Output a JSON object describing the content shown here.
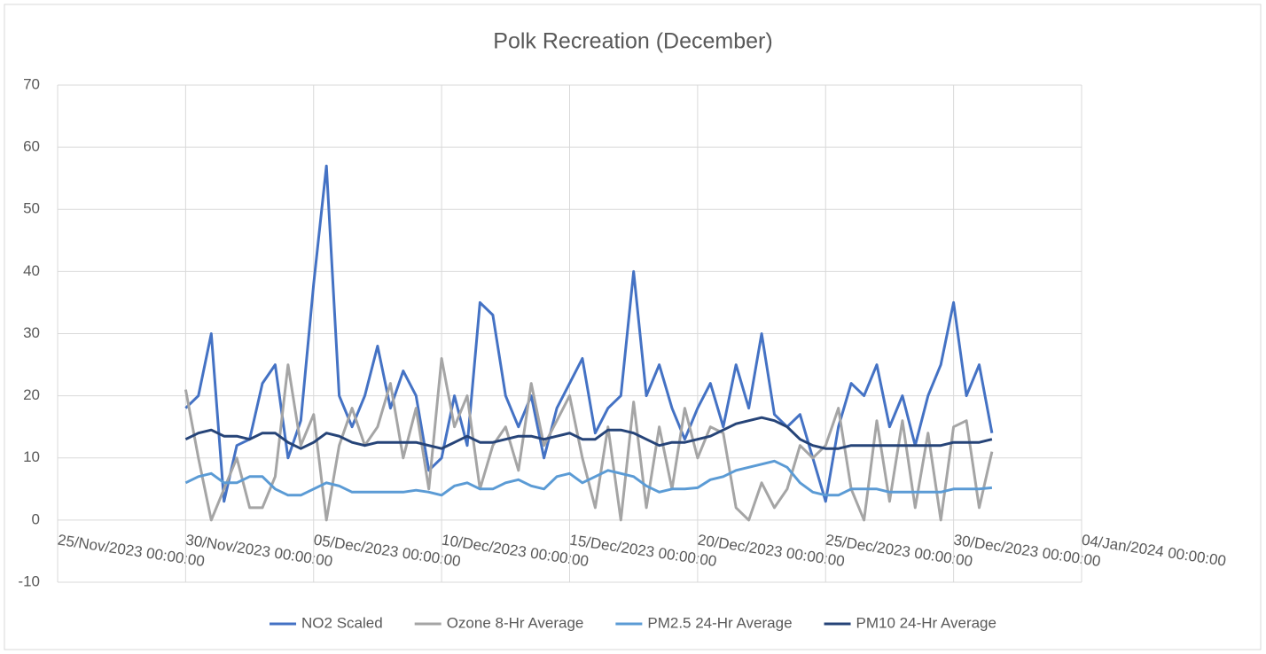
{
  "chart_data": {
    "type": "line",
    "title": "Polk Recreation (December)",
    "x": [
      "30/Nov/2023 00:00:00",
      "30/Nov/2023 12:00:00",
      "01/Dec/2023 00:00:00",
      "01/Dec/2023 12:00:00",
      "02/Dec/2023 00:00:00",
      "02/Dec/2023 12:00:00",
      "03/Dec/2023 00:00:00",
      "03/Dec/2023 12:00:00",
      "04/Dec/2023 00:00:00",
      "04/Dec/2023 12:00:00",
      "05/Dec/2023 00:00:00",
      "05/Dec/2023 12:00:00",
      "06/Dec/2023 00:00:00",
      "06/Dec/2023 12:00:00",
      "07/Dec/2023 00:00:00",
      "07/Dec/2023 12:00:00",
      "08/Dec/2023 00:00:00",
      "08/Dec/2023 12:00:00",
      "09/Dec/2023 00:00:00",
      "09/Dec/2023 12:00:00",
      "10/Dec/2023 00:00:00",
      "10/Dec/2023 12:00:00",
      "11/Dec/2023 00:00:00",
      "11/Dec/2023 12:00:00",
      "12/Dec/2023 00:00:00",
      "12/Dec/2023 12:00:00",
      "13/Dec/2023 00:00:00",
      "13/Dec/2023 12:00:00",
      "14/Dec/2023 00:00:00",
      "14/Dec/2023 12:00:00",
      "15/Dec/2023 00:00:00",
      "15/Dec/2023 12:00:00",
      "16/Dec/2023 00:00:00",
      "16/Dec/2023 12:00:00",
      "17/Dec/2023 00:00:00",
      "17/Dec/2023 12:00:00",
      "18/Dec/2023 00:00:00",
      "18/Dec/2023 12:00:00",
      "19/Dec/2023 00:00:00",
      "19/Dec/2023 12:00:00",
      "20/Dec/2023 00:00:00",
      "20/Dec/2023 12:00:00",
      "21/Dec/2023 00:00:00",
      "21/Dec/2023 12:00:00",
      "22/Dec/2023 00:00:00",
      "22/Dec/2023 12:00:00",
      "23/Dec/2023 00:00:00",
      "23/Dec/2023 12:00:00",
      "24/Dec/2023 00:00:00",
      "24/Dec/2023 12:00:00",
      "25/Dec/2023 00:00:00",
      "25/Dec/2023 12:00:00",
      "26/Dec/2023 00:00:00",
      "26/Dec/2023 12:00:00",
      "27/Dec/2023 00:00:00",
      "27/Dec/2023 12:00:00",
      "28/Dec/2023 00:00:00",
      "28/Dec/2023 12:00:00",
      "29/Dec/2023 00:00:00",
      "29/Dec/2023 12:00:00",
      "30/Dec/2023 00:00:00",
      "30/Dec/2023 12:00:00",
      "31/Dec/2023 00:00:00",
      "31/Dec/2023 12:00:00"
    ],
    "series": [
      {
        "name": "NO2 Scaled",
        "color": "#4472c4",
        "values": [
          18,
          20,
          30,
          3,
          12,
          13,
          22,
          25,
          10,
          16,
          38,
          57,
          20,
          15,
          20,
          28,
          18,
          24,
          20,
          8,
          10,
          20,
          12,
          35,
          33,
          20,
          15,
          20,
          10,
          18,
          22,
          26,
          14,
          18,
          20,
          40,
          20,
          25,
          18,
          13,
          18,
          22,
          15,
          25,
          18,
          30,
          17,
          15,
          17,
          10,
          3,
          15,
          22,
          20,
          25,
          15,
          20,
          12,
          20,
          25,
          35,
          20,
          25,
          14
        ]
      },
      {
        "name": "Ozone 8-Hr Average",
        "color": "#a5a5a5",
        "values": [
          21,
          10,
          0,
          5,
          10,
          2,
          2,
          7,
          25,
          12,
          17,
          0,
          12,
          18,
          12,
          15,
          22,
          10,
          18,
          5,
          26,
          15,
          20,
          5,
          12,
          15,
          8,
          22,
          12,
          16,
          20,
          10,
          2,
          15,
          0,
          19,
          2,
          15,
          5,
          18,
          10,
          15,
          14,
          2,
          0,
          6,
          2,
          5,
          12,
          10,
          12,
          18,
          5,
          0,
          16,
          3,
          16,
          2,
          14,
          0,
          15,
          16,
          2,
          11
        ]
      },
      {
        "name": "PM2.5 24-Hr Average",
        "color": "#5b9bd5",
        "values": [
          6,
          7,
          7.5,
          6,
          6,
          7,
          7,
          5,
          4,
          4,
          5,
          6,
          5.5,
          4.5,
          4.5,
          4.5,
          4.5,
          4.5,
          4.8,
          4.5,
          4,
          5.5,
          6,
          5,
          5,
          6,
          6.5,
          5.5,
          5,
          7,
          7.5,
          6,
          7,
          8,
          7.5,
          7,
          5.5,
          4.5,
          5,
          5,
          5.2,
          6.5,
          7,
          8,
          8.5,
          9,
          9.5,
          8.5,
          6,
          4.5,
          4,
          4,
          5,
          5,
          5,
          4.5,
          4.5,
          4.5,
          4.5,
          4.5,
          5,
          5,
          5,
          5.2
        ]
      },
      {
        "name": "PM10 24-Hr Average",
        "color": "#264478",
        "values": [
          13,
          14,
          14.5,
          13.5,
          13.5,
          13,
          14,
          14,
          12.5,
          11.5,
          12.5,
          14,
          13.5,
          12.5,
          12,
          12.5,
          12.5,
          12.5,
          12.5,
          12,
          11.5,
          12.5,
          13.5,
          12.5,
          12.5,
          13,
          13.5,
          13.5,
          13,
          13.5,
          14,
          13,
          13,
          14.5,
          14.5,
          14,
          13,
          12,
          12.5,
          12.5,
          13,
          13.5,
          14.5,
          15.5,
          16,
          16.5,
          16,
          15,
          13,
          12,
          11.5,
          11.5,
          12,
          12,
          12,
          12,
          12,
          12,
          12,
          12,
          12.5,
          12.5,
          12.5,
          13
        ]
      }
    ],
    "xlim": [
      "25/Nov/2023 00:00:00",
      "04/Jan/2024 00:00:00"
    ],
    "xticks": [
      "25/Nov/2023 00:00:00",
      "30/Nov/2023 00:00:00",
      "05/Dec/2023 00:00:00",
      "10/Dec/2023 00:00:00",
      "15/Dec/2023 00:00:00",
      "20/Dec/2023 00:00:00",
      "25/Dec/2023 00:00:00",
      "30/Dec/2023 00:00:00",
      "04/Jan/2024 00:00:00"
    ],
    "ylim": [
      -10,
      70
    ],
    "yticks": [
      -10,
      0,
      10,
      20,
      30,
      40,
      50,
      60,
      70
    ],
    "grid": true,
    "legend": "bottom"
  }
}
